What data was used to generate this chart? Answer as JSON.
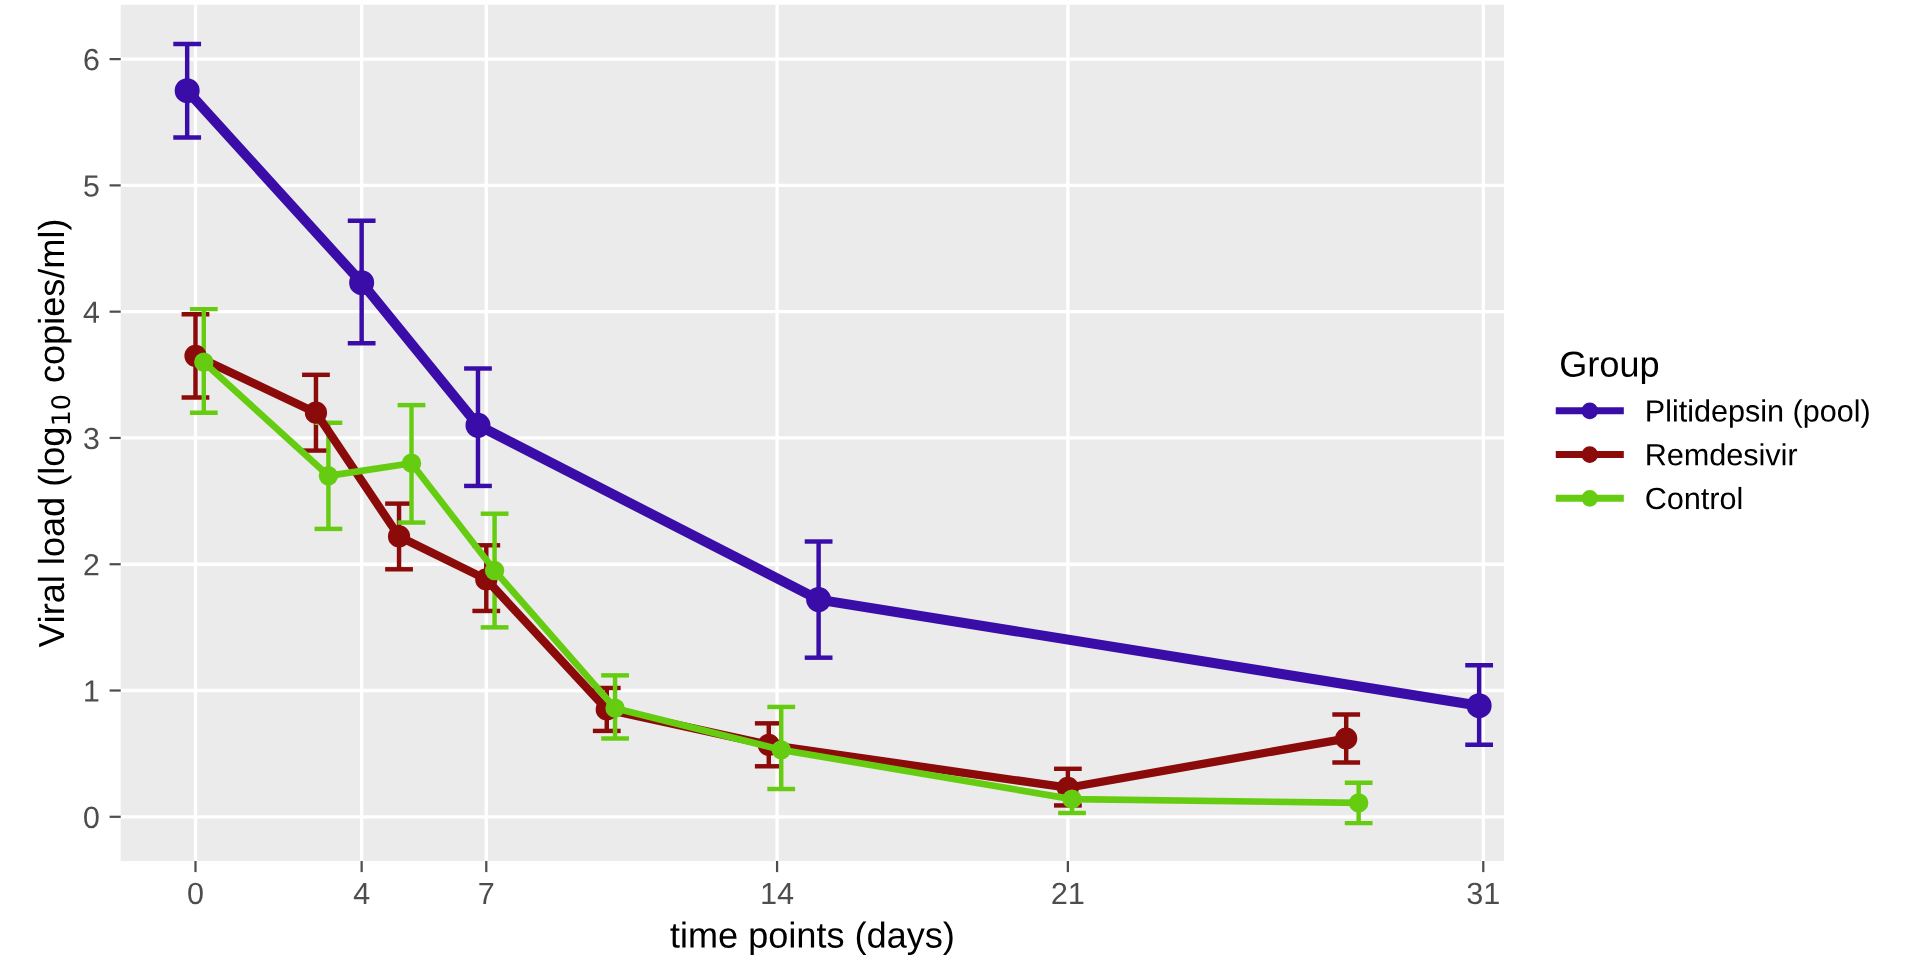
{
  "chart_data": {
    "type": "line",
    "xlabel": "time points (days)",
    "ylabel": "Viral load (log$_{10}$ copies/ml)",
    "legend_title": "Group",
    "xlim": [
      -1.8,
      31.5
    ],
    "xticks": [
      0,
      4,
      7,
      14,
      21,
      31
    ],
    "ylim": [
      -0.35,
      6.43
    ],
    "yticks": [
      0,
      1,
      2,
      3,
      4,
      5,
      6
    ],
    "grid": true,
    "legend": "right",
    "marker": "circle",
    "line_style": "solid",
    "series": [
      {
        "name": "Plitidepsin (pool)",
        "color": "#3a0ca8",
        "x": [
          -0.2,
          4,
          6.8,
          15,
          30.9
        ],
        "values": [
          5.75,
          4.23,
          3.1,
          1.72,
          0.88
        ],
        "errors": [
          [
            5.38,
            6.12
          ],
          [
            3.75,
            4.72
          ],
          [
            2.62,
            3.55
          ],
          [
            1.26,
            2.18
          ],
          [
            0.57,
            1.2
          ]
        ]
      },
      {
        "name": "Remdesivir",
        "color": "#8b0a0a",
        "x": [
          0,
          2.9,
          4.9,
          7,
          9.9,
          13.8,
          21,
          27.7
        ],
        "values": [
          3.65,
          3.2,
          2.22,
          1.88,
          0.85,
          0.57,
          0.23,
          0.62
        ],
        "errors": [
          [
            3.32,
            3.98
          ],
          [
            2.9,
            3.5
          ],
          [
            1.96,
            2.48
          ],
          [
            1.63,
            2.15
          ],
          [
            0.68,
            1.02
          ],
          [
            0.4,
            0.74
          ],
          [
            0.09,
            0.38
          ],
          [
            0.43,
            0.81
          ]
        ]
      },
      {
        "name": "Control",
        "color": "#66cc11",
        "x": [
          0.2,
          3.2,
          5.2,
          7.2,
          10.1,
          14.1,
          21.1,
          28
        ],
        "values": [
          3.6,
          2.7,
          2.8,
          1.95,
          0.86,
          0.53,
          0.14,
          0.11
        ],
        "errors": [
          [
            3.2,
            4.02
          ],
          [
            2.28,
            3.12
          ],
          [
            2.33,
            3.26
          ],
          [
            1.5,
            2.4
          ],
          [
            0.62,
            1.12
          ],
          [
            0.22,
            0.87
          ],
          [
            0.03,
            0.25
          ],
          [
            -0.05,
            0.27
          ]
        ]
      }
    ]
  }
}
